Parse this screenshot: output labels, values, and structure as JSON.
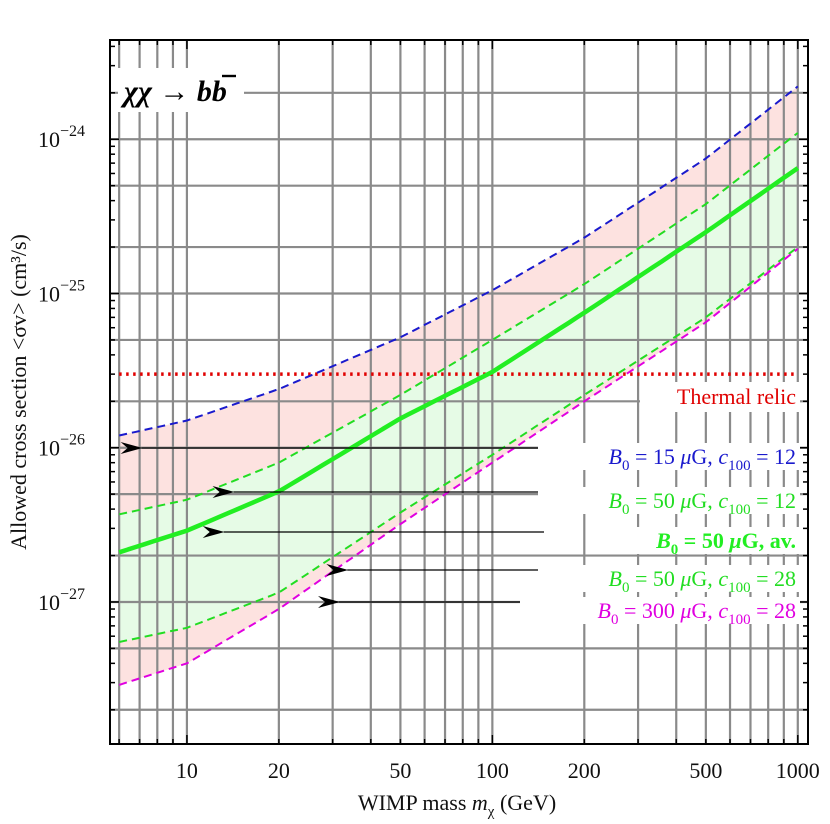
{
  "chart_data": {
    "type": "line",
    "title": "",
    "process_label": {
      "main": "χχ → b",
      "bbar": "b"
    },
    "xlabel": {
      "text": "WIMP mass ",
      "symbol": "m",
      "subscript": "χ",
      "unit": " (GeV)"
    },
    "ylabel": "Allowed cross section <σv> (cm³/s)",
    "x_scale": "log",
    "y_scale": "log",
    "xlim": [
      5.6,
      1080
    ],
    "ylim": [
      1.2e-28,
      4.4e-24
    ],
    "grid": true,
    "x_ticks": [
      {
        "value": 10,
        "label": "10"
      },
      {
        "value": 20,
        "label": "20"
      },
      {
        "value": 50,
        "label": "50"
      },
      {
        "value": 100,
        "label": "100"
      },
      {
        "value": 200,
        "label": "200"
      },
      {
        "value": 500,
        "label": "500"
      },
      {
        "value": 1000,
        "label": "1000"
      }
    ],
    "y_ticks": [
      {
        "value": 1e-27,
        "mantissa": "10",
        "exponent": "−27"
      },
      {
        "value": 1e-26,
        "mantissa": "10",
        "exponent": "−26"
      },
      {
        "value": 1e-25,
        "mantissa": "10",
        "exponent": "−25"
      },
      {
        "value": 1e-24,
        "mantissa": "10",
        "exponent": "−24"
      }
    ],
    "thermal_relic": {
      "value": 3e-26,
      "label": "Thermal relic",
      "color": "#e00000"
    },
    "bands": [
      {
        "between": [
          "b15_c12",
          "b300_c28"
        ],
        "color": "#fde2e0"
      },
      {
        "between": [
          "b50_c12",
          "b50_c28"
        ],
        "color": "#e6fbe6"
      }
    ],
    "series": [
      {
        "id": "b15_c12",
        "label": {
          "b": "B",
          "sub": "0",
          "eq": " = 15 ",
          "mu": "μ",
          "g": "G,  ",
          "c": "c",
          "csub": "100",
          "ceq": " = 12"
        },
        "color": "#1a1acd",
        "style": "dashed",
        "bold": false,
        "x": [
          6,
          10,
          20,
          50,
          100,
          200,
          500,
          1000
        ],
        "y": [
          1.2e-26,
          1.5e-26,
          2.4e-26,
          5.2e-26,
          1.05e-25,
          2.3e-25,
          7.5e-25,
          2.2e-24
        ],
        "arrow_at": 7
      },
      {
        "id": "b50_c12",
        "label": {
          "b": "B",
          "sub": "0",
          "eq": " = 50 ",
          "mu": "μ",
          "g": "G,  ",
          "c": "c",
          "csub": "100",
          "ceq": " = 12"
        },
        "color": "#22dd22",
        "style": "dashed",
        "bold": false,
        "x": [
          6,
          10,
          20,
          50,
          100,
          200,
          500,
          1000
        ],
        "y": [
          3.7e-27,
          4.6e-27,
          8e-27,
          2.2e-26,
          5e-26,
          1.15e-25,
          3.8e-25,
          1.1e-24
        ],
        "arrow_at": 14
      },
      {
        "id": "b50_av",
        "label": {
          "b": "B",
          "sub": "0",
          "eq": " = 50 ",
          "mu": "μ",
          "g": "G,  av.",
          "c": "",
          "csub": "",
          "ceq": ""
        },
        "color": "#22ee22",
        "style": "solid",
        "bold": true,
        "x": [
          6,
          10,
          20,
          50,
          100,
          200,
          500,
          1000
        ],
        "y": [
          2.1e-27,
          2.9e-27,
          5.2e-27,
          1.55e-26,
          3.1e-26,
          7.5e-26,
          2.5e-25,
          6.5e-25
        ],
        "arrow_at": 13
      },
      {
        "id": "b50_c28",
        "label": {
          "b": "B",
          "sub": "0",
          "eq": " = 50 ",
          "mu": "μ",
          "g": "G,  ",
          "c": "c",
          "csub": "100",
          "ceq": " = 28"
        },
        "color": "#22dd22",
        "style": "dashed",
        "bold": false,
        "x": [
          6,
          10,
          20,
          50,
          100,
          200,
          500,
          1000
        ],
        "y": [
          5.5e-28,
          6.8e-28,
          1.15e-27,
          3.8e-27,
          9e-27,
          2.2e-26,
          7e-26,
          2e-25
        ],
        "arrow_at": 33
      },
      {
        "id": "b300_c28",
        "label": {
          "b": "B",
          "sub": "0",
          "eq": " = 300 ",
          "mu": "μ",
          "g": "G,  ",
          "c": "c",
          "csub": "100",
          "ceq": " = 28"
        },
        "color": "#e000e0",
        "style": "dashed",
        "bold": false,
        "x": [
          6,
          10,
          20,
          50,
          100,
          200,
          500,
          1000
        ],
        "y": [
          2.9e-28,
          4e-28,
          9e-28,
          3.2e-27,
          8e-27,
          2e-26,
          6.5e-26,
          1.95e-25
        ],
        "arrow_at": 31
      }
    ]
  }
}
